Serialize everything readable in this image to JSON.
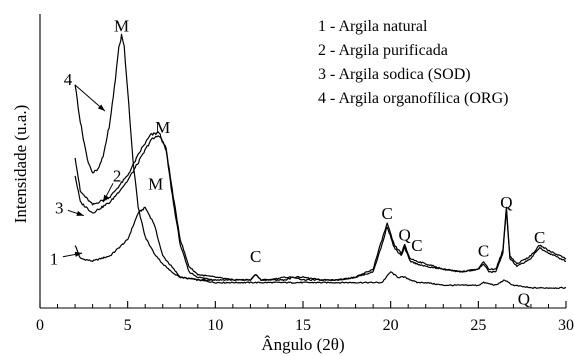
{
  "chart_data": {
    "type": "line",
    "xlabel": "Ângulo (2θ)",
    "ylabel": "Intensidade (u.a.)",
    "xlim": [
      0,
      30
    ],
    "ylim": [
      0,
      100
    ],
    "xticks": [
      0,
      5,
      10,
      15,
      20,
      25,
      30
    ],
    "y_ticks_labeled": false,
    "legend": {
      "position": "top-right",
      "entries": [
        "1 - Argila natural",
        "2 - Argila purificada",
        "3 - Argila sodica (SOD)",
        "4 - Argila organofílica (ORG)"
      ]
    },
    "series": [
      {
        "name": "1 - Argila natural",
        "x": [
          2.0,
          2.3,
          3.0,
          4.0,
          5.0,
          5.6,
          6.0,
          6.5,
          7.0,
          8.0,
          9.0,
          10.0,
          11.0,
          12.0,
          12.3,
          12.6,
          13.0,
          14.0,
          15.0,
          16.0,
          17.0,
          18.0,
          19.0,
          19.5,
          20.0,
          20.4,
          20.8,
          21.5,
          22.0,
          23.0,
          24.0,
          25.0,
          25.3,
          26.0,
          26.5,
          26.7,
          27.0,
          28.0,
          28.5,
          29.0,
          30.0
        ],
        "y": [
          22,
          17,
          16,
          18,
          24,
          34,
          36,
          30,
          18,
          10,
          9,
          8,
          8,
          8,
          8,
          8,
          8,
          8,
          8,
          8,
          8,
          8,
          8,
          8,
          12,
          10,
          10,
          8,
          8,
          7,
          7,
          7,
          8,
          7,
          9,
          8,
          7,
          6,
          6,
          6,
          6
        ]
      },
      {
        "name": "2 - Argila purificada",
        "x": [
          2.0,
          2.3,
          3.0,
          4.0,
          5.0,
          5.8,
          6.3,
          6.8,
          7.2,
          7.6,
          8.0,
          8.5,
          9.0,
          10.0,
          11.0,
          12.0,
          12.3,
          12.6,
          13.0,
          14.0,
          14.5,
          15.0,
          16.0,
          17.0,
          18.0,
          19.0,
          19.5,
          19.8,
          20.2,
          20.6,
          20.8,
          21.1,
          21.5,
          22.0,
          23.0,
          24.0,
          25.0,
          25.3,
          25.6,
          26.0,
          26.4,
          26.6,
          26.8,
          27.2,
          28.0,
          28.5,
          29.0,
          30.0
        ],
        "y": [
          55,
          42,
          37,
          40,
          48,
          58,
          63,
          64,
          57,
          38,
          22,
          12,
          10,
          9,
          9,
          9,
          11,
          9,
          9,
          10,
          10,
          10,
          9,
          9,
          10,
          13,
          24,
          30,
          22,
          19,
          22,
          17,
          16,
          15,
          13,
          12,
          13,
          16,
          13,
          13,
          20,
          36,
          18,
          15,
          18,
          22,
          20,
          17
        ]
      },
      {
        "name": "3 - Argila sodica (SOD)",
        "x": [
          2.0,
          2.3,
          3.0,
          4.0,
          5.0,
          5.8,
          6.3,
          6.8,
          7.2,
          7.6,
          8.0,
          8.5,
          9.0,
          10.0,
          11.0,
          12.0,
          12.3,
          12.6,
          13.0,
          14.0,
          14.5,
          15.0,
          16.0,
          17.0,
          18.0,
          19.0,
          19.5,
          19.8,
          20.2,
          20.6,
          20.8,
          21.1,
          21.5,
          22.0,
          23.0,
          24.0,
          25.0,
          25.3,
          25.6,
          26.0,
          26.4,
          26.6,
          26.8,
          27.2,
          28.0,
          28.5,
          29.0,
          30.0
        ],
        "y": [
          48,
          38,
          34,
          38,
          46,
          55,
          61,
          63,
          58,
          40,
          24,
          14,
          11,
          10,
          9,
          9,
          11,
          9,
          9,
          9,
          10,
          9,
          9,
          9,
          10,
          12,
          22,
          29,
          21,
          18,
          21,
          16,
          15,
          14,
          13,
          12,
          13,
          15,
          12,
          12,
          19,
          35,
          17,
          14,
          17,
          21,
          19,
          16
        ]
      },
      {
        "name": "4 - Argila organofílica (ORG)",
        "x": [
          2.0,
          2.3,
          2.7,
          3.0,
          3.3,
          3.6,
          4.0,
          4.3,
          4.5,
          4.65,
          4.8,
          5.0,
          5.3,
          5.6,
          6.0,
          6.5,
          7.0,
          7.5,
          8.0,
          9.0,
          10.0
        ],
        "y": [
          82,
          68,
          54,
          49,
          50,
          55,
          68,
          84,
          96,
          100,
          96,
          80,
          54,
          36,
          25,
          19,
          15,
          12,
          10,
          9,
          9
        ]
      }
    ],
    "annotations": [
      {
        "text": "M",
        "x": 4.65,
        "y": 104
      },
      {
        "text": "M",
        "x": 7.0,
        "y": 66
      },
      {
        "text": "M",
        "x": 6.6,
        "y": 45
      },
      {
        "text": "C",
        "x": 12.3,
        "y": 18
      },
      {
        "text": "C",
        "x": 19.8,
        "y": 34
      },
      {
        "text": "Q",
        "x": 20.8,
        "y": 26
      },
      {
        "text": "C",
        "x": 21.5,
        "y": 22
      },
      {
        "text": "C",
        "x": 25.3,
        "y": 20
      },
      {
        "text": "Q",
        "x": 26.6,
        "y": 38
      },
      {
        "text": "C",
        "x": 28.5,
        "y": 25
      },
      {
        "text": "Q",
        "x": 27.6,
        "y": 2
      }
    ],
    "curve_labels": [
      {
        "text": "1",
        "x": 0.8,
        "y": 17,
        "arrow_to": [
          2.4,
          19
        ]
      },
      {
        "text": "2",
        "x": 4.4,
        "y": 48,
        "arrow_to": [
          3.6,
          38
        ]
      },
      {
        "text": "3",
        "x": 1.1,
        "y": 36,
        "arrow_to": [
          2.5,
          33
        ]
      },
      {
        "text": "4",
        "x": 1.6,
        "y": 84,
        "arrow_to": [
          3.7,
          72
        ]
      }
    ]
  }
}
